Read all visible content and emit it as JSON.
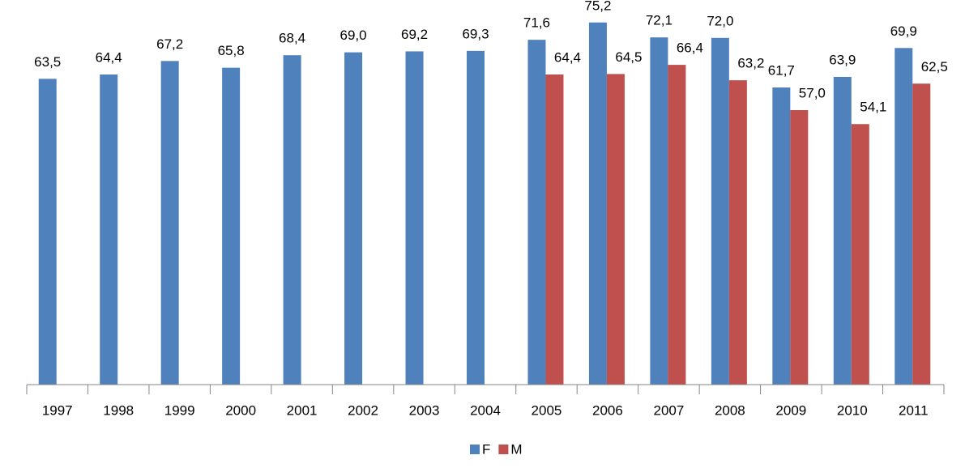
{
  "chart_data": {
    "type": "bar",
    "categories": [
      "1997",
      "1998",
      "1999",
      "2000",
      "2001",
      "2002",
      "2003",
      "2004",
      "2005",
      "2006",
      "2007",
      "2008",
      "2009",
      "2010",
      "2011"
    ],
    "series": [
      {
        "name": "F",
        "color": "#4f81bd",
        "values": [
          63.5,
          64.4,
          67.2,
          65.8,
          68.4,
          69.0,
          69.2,
          69.3,
          71.6,
          75.2,
          72.1,
          72.0,
          61.7,
          63.9,
          69.9
        ],
        "value_labels": [
          "63,5",
          "64,4",
          "67,2",
          "65,8",
          "68,4",
          "69,0",
          "69,2",
          "69,3",
          "71,6",
          "75,2",
          "72,1",
          "72,0",
          "61,7",
          "63,9",
          "69,9"
        ]
      },
      {
        "name": "M",
        "color": "#c0504d",
        "values": [
          null,
          null,
          null,
          null,
          null,
          null,
          null,
          null,
          64.4,
          64.5,
          66.4,
          63.2,
          57.0,
          54.1,
          62.5
        ],
        "value_labels": [
          null,
          null,
          null,
          null,
          null,
          null,
          null,
          null,
          "64,4",
          "64,5",
          "66,4",
          "63,2",
          "57,0",
          "54,1",
          "62,5"
        ]
      }
    ],
    "ylim": [
      0,
      76
    ],
    "legend": "bottom"
  }
}
